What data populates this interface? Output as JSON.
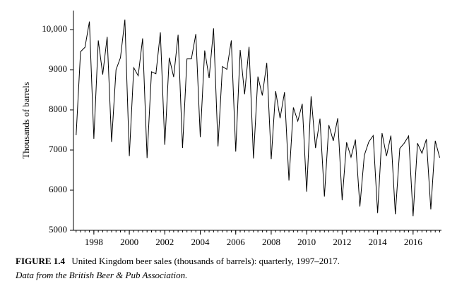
{
  "chart_data": {
    "type": "line",
    "ylabel": "Thousands of barrels",
    "caption_label": "FIGURE 1.4",
    "caption": "United Kingdom beer sales (thousands of barrels): quarterly, 1997–2017.",
    "caption_source": "Data from the British Beer & Pub Association.",
    "color": "#000000",
    "x": [
      1997,
      1997.25,
      1997.5,
      1997.75,
      1998,
      1998.25,
      1998.5,
      1998.75,
      1999,
      1999.25,
      1999.5,
      1999.75,
      2000,
      2000.25,
      2000.5,
      2000.75,
      2001,
      2001.25,
      2001.5,
      2001.75,
      2002,
      2002.25,
      2002.5,
      2002.75,
      2003,
      2003.25,
      2003.5,
      2003.75,
      2004,
      2004.25,
      2004.5,
      2004.75,
      2005,
      2005.25,
      2005.5,
      2005.75,
      2006,
      2006.25,
      2006.5,
      2006.75,
      2007,
      2007.25,
      2007.5,
      2007.75,
      2008,
      2008.25,
      2008.5,
      2008.75,
      2009,
      2009.25,
      2009.5,
      2009.75,
      2010,
      2010.25,
      2010.5,
      2010.75,
      2011,
      2011.25,
      2011.5,
      2011.75,
      2012,
      2012.25,
      2012.5,
      2012.75,
      2013,
      2013.25,
      2013.5,
      2013.75,
      2014,
      2014.25,
      2014.5,
      2014.75,
      2015,
      2015.25,
      2015.5,
      2015.75,
      2016,
      2016.25,
      2016.5,
      2016.75,
      2017,
      2017.25,
      2017.5
    ],
    "values": [
      7370,
      9450,
      9560,
      10200,
      7280,
      9730,
      8880,
      9820,
      7200,
      9000,
      9300,
      10250,
      6850,
      9050,
      8850,
      9780,
      6800,
      8950,
      8900,
      9930,
      7130,
      9300,
      8820,
      9870,
      7050,
      9270,
      9270,
      9890,
      7320,
      9480,
      8790,
      10030,
      7090,
      9080,
      9010,
      9730,
      6960,
      9490,
      8390,
      9570,
      6790,
      8830,
      8360,
      9170,
      6770,
      8470,
      7790,
      8440,
      6240,
      8060,
      7720,
      8150,
      5960,
      8340,
      7050,
      7780,
      5840,
      7620,
      7230,
      7790,
      5750,
      7190,
      6820,
      7260,
      5590,
      6870,
      7200,
      7360,
      5430,
      7420,
      6850,
      7360,
      5400,
      7040,
      7170,
      7350,
      5350,
      7170,
      6920,
      7270,
      5520,
      7230,
      6810
    ],
    "xlim": [
      1996.85,
      2017.6
    ],
    "xticks": [
      1998,
      2000,
      2002,
      2004,
      2006,
      2008,
      2010,
      2012,
      2014,
      2016
    ],
    "ylim": [
      5000,
      10474
    ],
    "yticks": [
      5000,
      6000,
      7000,
      8000,
      9000,
      {
        "value": 10000,
        "label": "10,000"
      }
    ]
  }
}
